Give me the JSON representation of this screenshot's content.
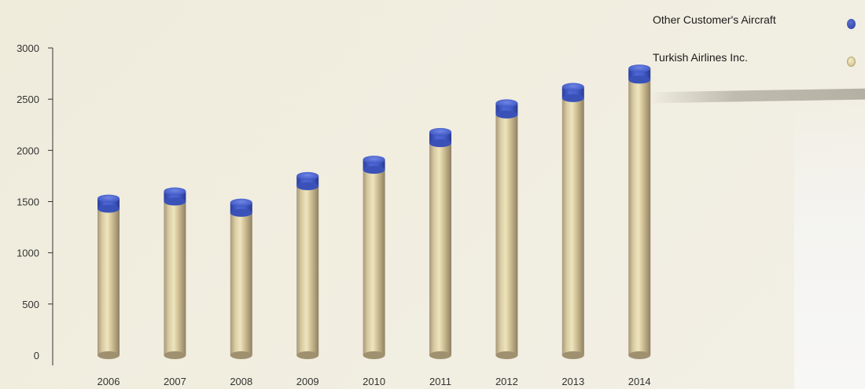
{
  "chart_data": {
    "type": "bar",
    "stacked": true,
    "categories": [
      "2006",
      "2007",
      "2008",
      "2009",
      "2010",
      "2011",
      "2012",
      "2013",
      "2014"
    ],
    "series": [
      {
        "name": "Turkish Airlines Inc.",
        "values": [
          1430,
          1500,
          1390,
          1650,
          1810,
          2070,
          2350,
          2510,
          2690
        ],
        "color": "#cdbf94"
      },
      {
        "name": "Other Customer's Aircraft",
        "values": [
          100,
          100,
          100,
          100,
          100,
          110,
          110,
          110,
          110
        ],
        "color": "#3f58c4"
      }
    ],
    "yticks": [
      0,
      500,
      1000,
      1500,
      2000,
      2500,
      3000
    ],
    "ylim": [
      0,
      3000
    ],
    "grid": false,
    "legend_position": "top-right"
  },
  "legend": {
    "items": [
      {
        "label": "Other Customer's Aircraft",
        "color": "#3f58c4"
      },
      {
        "label": "Turkish Airlines Inc.",
        "color": "#e8dfb4"
      }
    ]
  }
}
